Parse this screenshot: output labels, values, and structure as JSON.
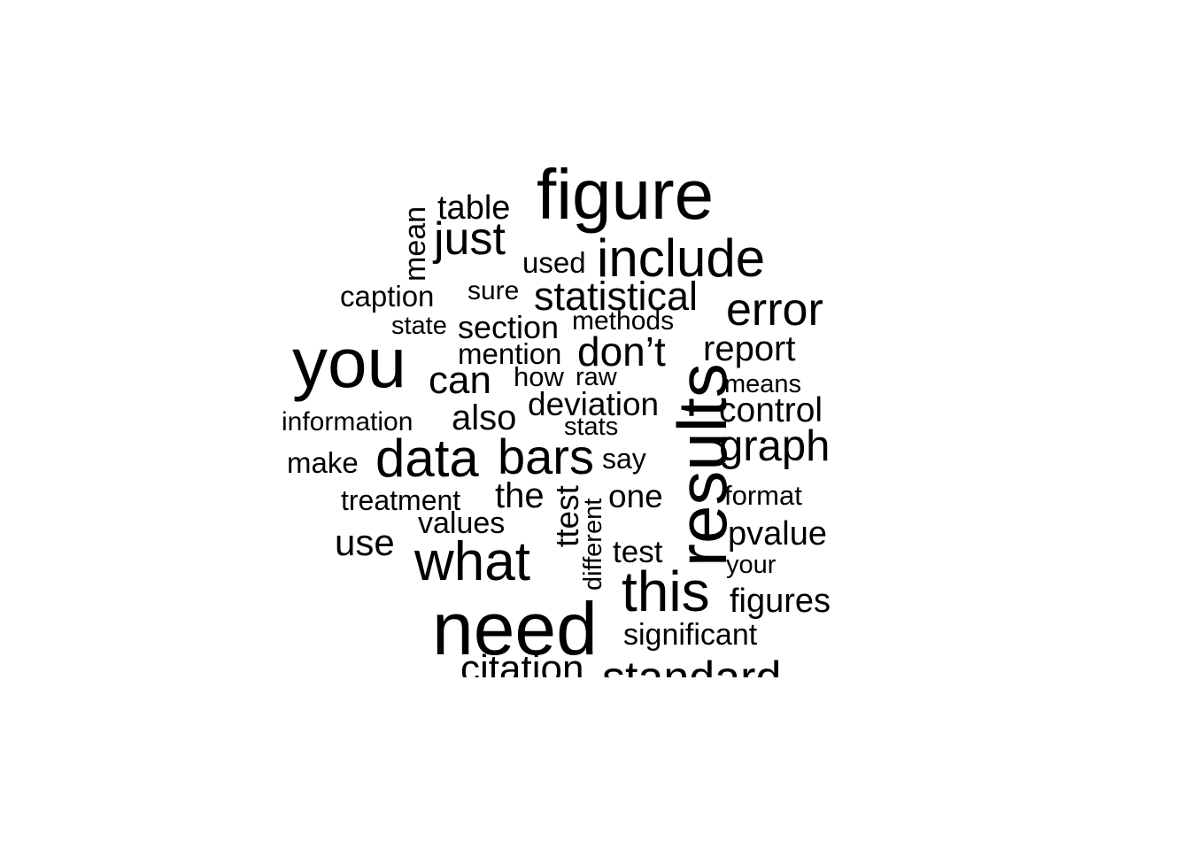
{
  "text_color": "#000000",
  "background": "#ffffff",
  "words": [
    {
      "text": "figure"
    },
    {
      "text": "table"
    },
    {
      "text": "mean"
    },
    {
      "text": "just"
    },
    {
      "text": "used"
    },
    {
      "text": "include"
    },
    {
      "text": "caption"
    },
    {
      "text": "sure"
    },
    {
      "text": "statistical"
    },
    {
      "text": "error"
    },
    {
      "text": "state"
    },
    {
      "text": "section"
    },
    {
      "text": "methods"
    },
    {
      "text": "you"
    },
    {
      "text": "mention"
    },
    {
      "text": "don’t"
    },
    {
      "text": "report"
    },
    {
      "text": "can"
    },
    {
      "text": "how"
    },
    {
      "text": "raw"
    },
    {
      "text": "means"
    },
    {
      "text": "results"
    },
    {
      "text": "information"
    },
    {
      "text": "also"
    },
    {
      "text": "deviation"
    },
    {
      "text": "control"
    },
    {
      "text": "stats"
    },
    {
      "text": "make"
    },
    {
      "text": "data"
    },
    {
      "text": "bars"
    },
    {
      "text": "say"
    },
    {
      "text": "graph"
    },
    {
      "text": "treatment"
    },
    {
      "text": "the"
    },
    {
      "text": "ttest"
    },
    {
      "text": "one"
    },
    {
      "text": "format"
    },
    {
      "text": "values"
    },
    {
      "text": "different"
    },
    {
      "text": "use"
    },
    {
      "text": "what"
    },
    {
      "text": "test"
    },
    {
      "text": "pvalue"
    },
    {
      "text": "your"
    },
    {
      "text": "this"
    },
    {
      "text": "figures"
    },
    {
      "text": "need"
    },
    {
      "text": "significant"
    },
    {
      "text": "citation"
    },
    {
      "text": "standard"
    }
  ]
}
